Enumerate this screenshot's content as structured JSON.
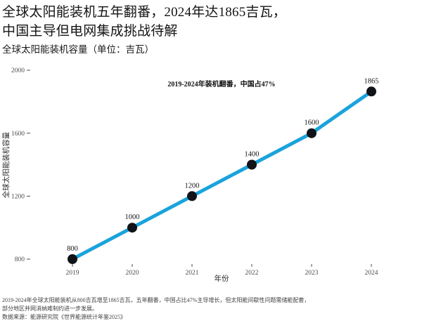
{
  "header": {
    "title_line1": "全球太阳能装机五年翻番，2024年达1865吉瓦，",
    "title_line2": "中国主导但电网集成挑战待解",
    "subtitle": "全球太阳能装机容量（单位：吉瓦）"
  },
  "chart_data": {
    "type": "line",
    "categories": [
      "2019",
      "2020",
      "2021",
      "2022",
      "2023",
      "2024"
    ],
    "series": [
      {
        "name": "全球太阳能装机容量",
        "values": [
          800,
          1000,
          1200,
          1400,
          1600,
          1865
        ]
      }
    ],
    "point_labels": [
      "800",
      "1000",
      "1200",
      "1400",
      "1600",
      "1865"
    ],
    "title": "全球太阳能装机容量（单位：吉瓦）",
    "xlabel": "年份",
    "ylabel": "全球太阳能装机容量",
    "yticks": [
      800,
      1200,
      1600,
      2000
    ],
    "ylim": [
      780,
      2060
    ],
    "grid": false,
    "legend": false,
    "annotation": "2019-2024年装机翻番，中国占47%",
    "colors": {
      "line": "#1aa3dc",
      "point": "#101418",
      "tick_text": "#4d4d4d",
      "label_text": "#141414",
      "axis_title_text": "#2b2b2b"
    }
  },
  "footer": {
    "note_line1": "2019-2024年全球太阳能装机从800吉瓦增至1865吉瓦，五年翻番，中国占比47%主导增长，但太阳能间歇性问题需储能配套，",
    "note_line2": "部分地区并网消纳难制约进一步发展。",
    "source": "数据来源：能源研究院《世界能源统计年鉴2025》"
  }
}
